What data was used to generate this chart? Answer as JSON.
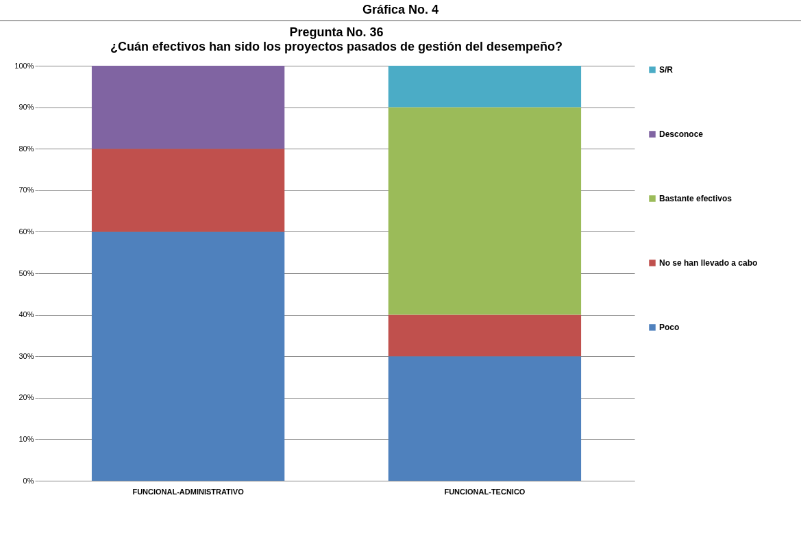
{
  "chart_data": {
    "type": "bar",
    "title": "Pregunta No. 36",
    "subtitle": "¿Cuán efectivos han sido los proyectos pasados de gestión del desempeño?",
    "annotations": [
      "Gráfica No. 4"
    ],
    "categories": [
      "FUNCIONAL-ADMINISTRATIVO",
      "FUNCIONAL-TECNICO"
    ],
    "stacked": true,
    "series": [
      {
        "name": "Poco",
        "color": "#4f81bd",
        "values": [
          60,
          30
        ]
      },
      {
        "name": "No se han llevado a cabo",
        "color": "#c0504d",
        "values": [
          20,
          10
        ]
      },
      {
        "name": "Bastante efectivos",
        "color": "#9bbb59",
        "values": [
          null,
          50
        ]
      },
      {
        "name": "Desconoce",
        "color": "#8064a2",
        "values": [
          20,
          null
        ]
      },
      {
        "name": "S/R",
        "color": "#4bacc6",
        "values": [
          null,
          10
        ]
      }
    ],
    "ylim": [
      0,
      100
    ],
    "yticks": [
      {
        "value": 0,
        "label": "0%"
      },
      {
        "value": 10,
        "label": "10%"
      },
      {
        "value": 20,
        "label": "20%"
      },
      {
        "value": 30,
        "label": "30%"
      },
      {
        "value": 40,
        "label": "40%"
      },
      {
        "value": 50,
        "label": "50%"
      },
      {
        "value": 60,
        "label": "60%"
      },
      {
        "value": 70,
        "label": "70%"
      },
      {
        "value": 80,
        "label": "80%"
      },
      {
        "value": 90,
        "label": "90%"
      },
      {
        "value": 100,
        "label": "100%"
      }
    ],
    "grid": "y",
    "legend": "right"
  }
}
